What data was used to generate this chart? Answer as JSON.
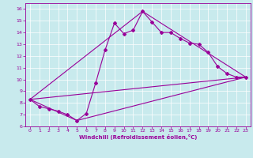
{
  "xlabel": "Windchill (Refroidissement éolien,°C)",
  "bg_color": "#c8eaed",
  "line_color": "#990099",
  "grid_color": "#ffffff",
  "line1_x": [
    0,
    1,
    2,
    3,
    4,
    5,
    6,
    7,
    8,
    9,
    10,
    11,
    12,
    13,
    14,
    15,
    16,
    17,
    18,
    19,
    20,
    21,
    22,
    23
  ],
  "line1_y": [
    8.3,
    7.7,
    7.5,
    7.3,
    7.0,
    6.5,
    7.1,
    9.7,
    12.5,
    14.8,
    13.9,
    14.2,
    15.8,
    14.9,
    14.0,
    14.0,
    13.5,
    13.1,
    13.0,
    12.3,
    11.1,
    10.5,
    10.2,
    10.2
  ],
  "line2_x": [
    0,
    23
  ],
  "line2_y": [
    8.3,
    10.2
  ],
  "line3_x": [
    0,
    5,
    23
  ],
  "line3_y": [
    8.3,
    6.5,
    10.2
  ],
  "line4_x": [
    0,
    12,
    23
  ],
  "line4_y": [
    8.3,
    15.8,
    10.2
  ],
  "xlim": [
    -0.5,
    23.5
  ],
  "ylim": [
    6,
    16.5
  ],
  "xticks": [
    0,
    1,
    2,
    3,
    4,
    5,
    6,
    7,
    8,
    9,
    10,
    11,
    12,
    13,
    14,
    15,
    16,
    17,
    18,
    19,
    20,
    21,
    22,
    23
  ],
  "yticks": [
    6,
    7,
    8,
    9,
    10,
    11,
    12,
    13,
    14,
    15,
    16
  ]
}
